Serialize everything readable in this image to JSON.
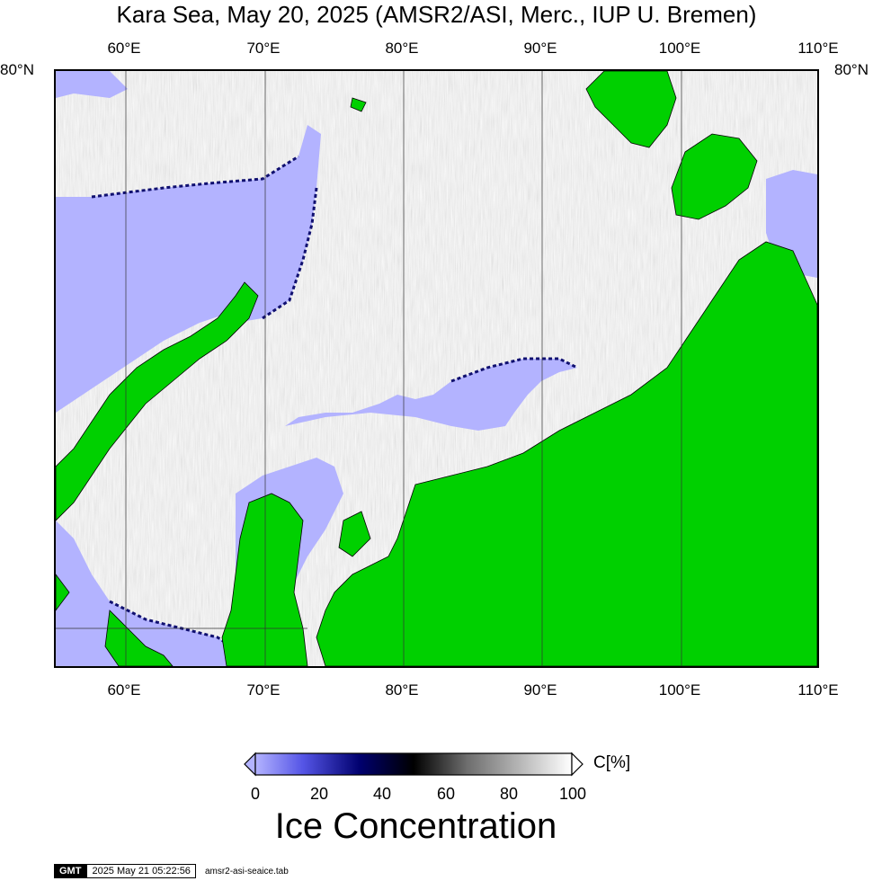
{
  "title": "Kara Sea, May 20, 2025 (AMSR2/ASI, Merc., IUP U. Bremen)",
  "map": {
    "projection": "Merc.",
    "top_lat_label": "80°N",
    "lon_labels": [
      "60°E",
      "70°E",
      "80°E",
      "90°E",
      "100°E",
      "110°E"
    ],
    "land_color": "#00d000",
    "open_water_color": "#b3b3ff"
  },
  "colorbar": {
    "unit_label": "C[%]",
    "ticks": [
      "0",
      "20",
      "40",
      "60",
      "80",
      "100"
    ],
    "title": "Ice Concentration",
    "stops": [
      "#b3b3ff",
      "#5555e6",
      "#00006e",
      "#000000",
      "#6e6e6e",
      "#b4b4b4",
      "#ffffff"
    ]
  },
  "footer": {
    "logo": "GMT",
    "timestamp": "2025 May 21 05:22:56",
    "filename": "amsr2-asi-seaice.tab"
  }
}
